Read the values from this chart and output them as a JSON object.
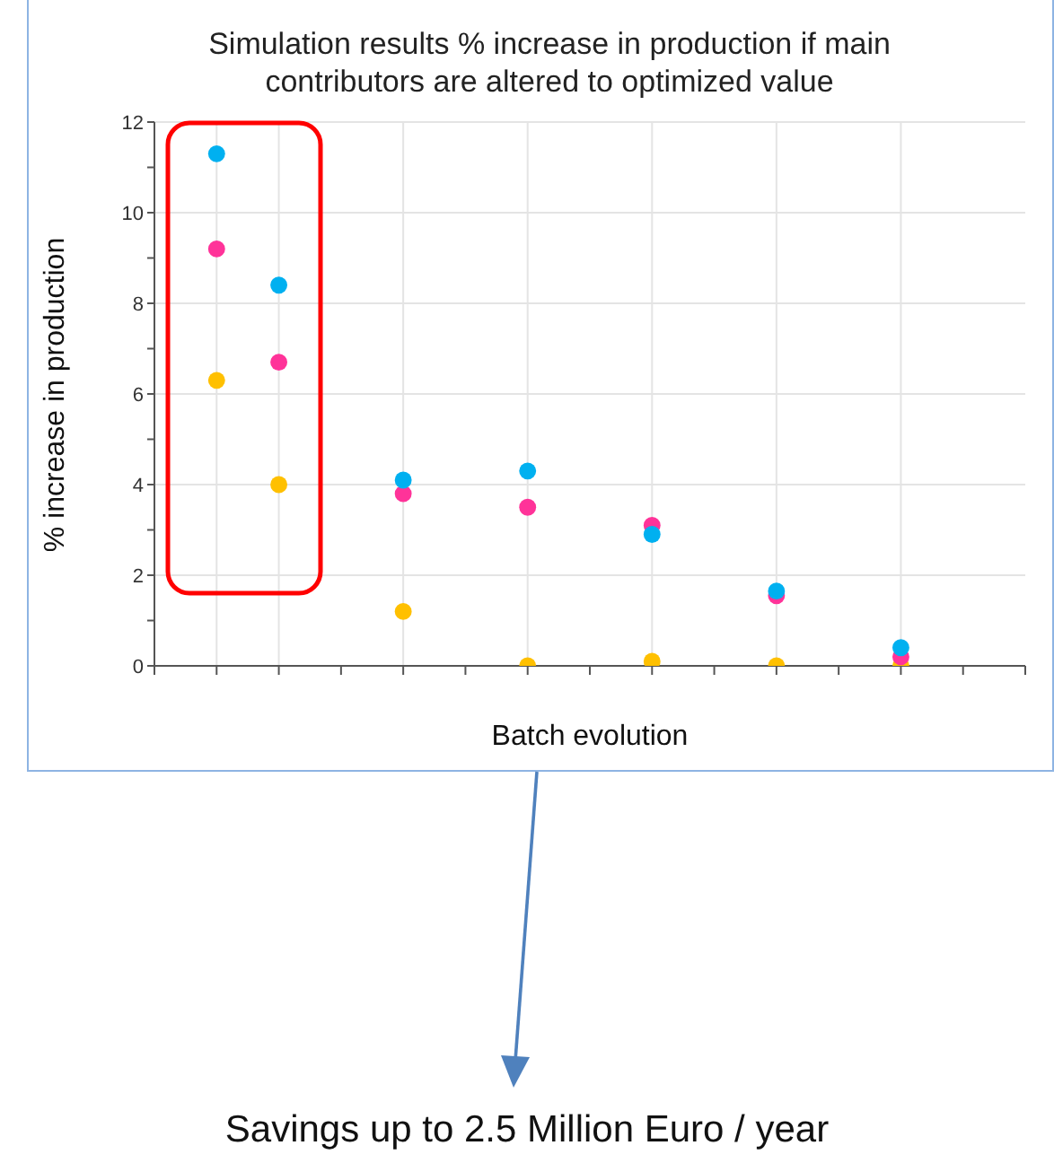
{
  "chart_data": {
    "type": "scatter",
    "title": "Simulation results % increase in production if main contributors are altered to optimized value",
    "xlabel": "Batch evolution",
    "ylabel": "% increase in production",
    "categories": [
      null,
      null,
      null,
      null,
      null,
      null,
      null,
      null,
      null,
      null,
      null,
      null,
      null
    ],
    "series": [
      {
        "color": "#00b0f0",
        "values": [
          11.3,
          8.4,
          null,
          4.1,
          null,
          4.3,
          null,
          2.9,
          null,
          1.65,
          null,
          0.4,
          null
        ]
      },
      {
        "color": "#ff3399",
        "values": [
          9.2,
          6.7,
          null,
          3.8,
          null,
          3.5,
          null,
          3.1,
          null,
          1.55,
          null,
          0.2,
          null
        ]
      },
      {
        "color": "#ffc000",
        "values": [
          6.3,
          4.0,
          null,
          1.2,
          null,
          0.0,
          null,
          0.1,
          null,
          0.0,
          null,
          0.0,
          null
        ]
      }
    ],
    "ylim": [
      0,
      12
    ],
    "yticks": [
      0,
      {
        "value": 1,
        "label": null
      },
      2,
      {
        "value": 3,
        "label": null
      },
      4,
      {
        "value": 5,
        "label": null
      },
      6,
      {
        "value": 7,
        "label": null
      },
      8,
      {
        "value": 9,
        "label": null
      },
      10,
      {
        "value": 11,
        "label": null
      },
      12
    ],
    "tick_labels": "y",
    "grid": true,
    "legend": false,
    "marker": "circle",
    "annotations": [
      "Savings up to 2.5 Million Euro / year"
    ]
  }
}
